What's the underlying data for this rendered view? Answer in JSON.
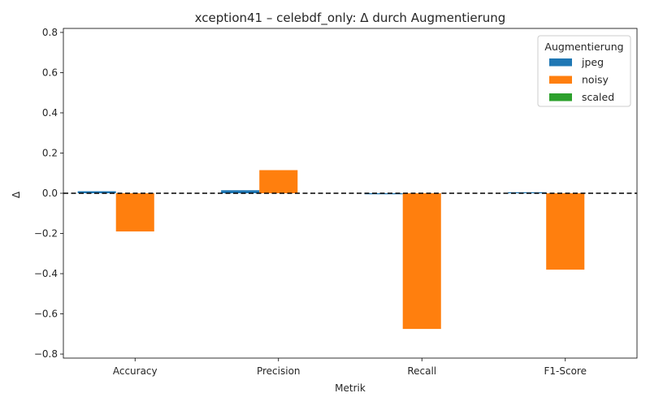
{
  "chart_data": {
    "type": "bar",
    "title": "xception41 – celebdf_only: Δ durch Augmentierung",
    "xlabel": "Metrik",
    "ylabel": "Δ",
    "categories": [
      "Accuracy",
      "Precision",
      "Recall",
      "F1-Score"
    ],
    "ylim": [
      -0.82,
      0.82
    ],
    "yticks": [
      -0.8,
      -0.6,
      -0.4,
      -0.2,
      0.0,
      0.2,
      0.4,
      0.6,
      0.8
    ],
    "ytick_labels": [
      "−0.8",
      "−0.6",
      "−0.4",
      "−0.2",
      "0.0",
      "0.2",
      "0.4",
      "0.6",
      "0.8"
    ],
    "reference_line": {
      "y": 0.0,
      "style": "dashed",
      "color": "#000000"
    },
    "legend": {
      "title": "Augmentierung",
      "placement": "top-right"
    },
    "series": [
      {
        "name": "jpeg",
        "color": "#1f77b4",
        "values": [
          0.01,
          0.015,
          -0.005,
          0.005
        ]
      },
      {
        "name": "noisy",
        "color": "#ff7f0e",
        "values": [
          -0.19,
          0.115,
          -0.675,
          -0.38
        ]
      },
      {
        "name": "scaled",
        "color": "#2ca02c",
        "values": [
          0.0,
          0.0,
          0.0,
          0.0
        ]
      }
    ]
  }
}
